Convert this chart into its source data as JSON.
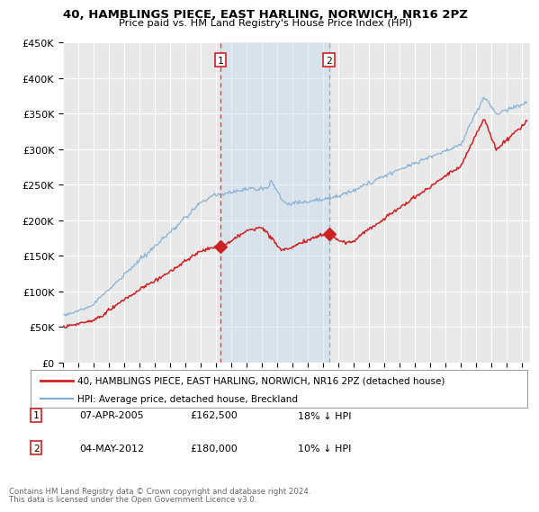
{
  "title": "40, HAMBLINGS PIECE, EAST HARLING, NORWICH, NR16 2PZ",
  "subtitle": "Price paid vs. HM Land Registry's House Price Index (HPI)",
  "ylim": [
    0,
    450000
  ],
  "yticks": [
    0,
    50000,
    100000,
    150000,
    200000,
    250000,
    300000,
    350000,
    400000,
    450000
  ],
  "ytick_labels": [
    "£0",
    "£50K",
    "£100K",
    "£150K",
    "£200K",
    "£250K",
    "£300K",
    "£350K",
    "£400K",
    "£450K"
  ],
  "xlim_start": 1995.0,
  "xlim_end": 2025.5,
  "background_color": "#ffffff",
  "plot_bg_color": "#e8e8e8",
  "grid_color": "#ffffff",
  "hpi_color": "#7dadd4",
  "price_color": "#cc2222",
  "sale1_x": 2005.27,
  "sale1_y": 162500,
  "sale1_label": "1",
  "sale2_x": 2012.37,
  "sale2_y": 180000,
  "sale2_label": "2",
  "vline1_color": "#cc2222",
  "vline2_color": "#8899bb",
  "shade_color": "#c8dcf0",
  "legend_entry1": "40, HAMBLINGS PIECE, EAST HARLING, NORWICH, NR16 2PZ (detached house)",
  "legend_entry2": "HPI: Average price, detached house, Breckland",
  "footnote1": "Contains HM Land Registry data © Crown copyright and database right 2024.",
  "footnote2": "This data is licensed under the Open Government Licence v3.0.",
  "table_row1": [
    "1",
    "07-APR-2005",
    "£162,500",
    "18% ↓ HPI"
  ],
  "table_row2": [
    "2",
    "04-MAY-2012",
    "£180,000",
    "10% ↓ HPI"
  ]
}
